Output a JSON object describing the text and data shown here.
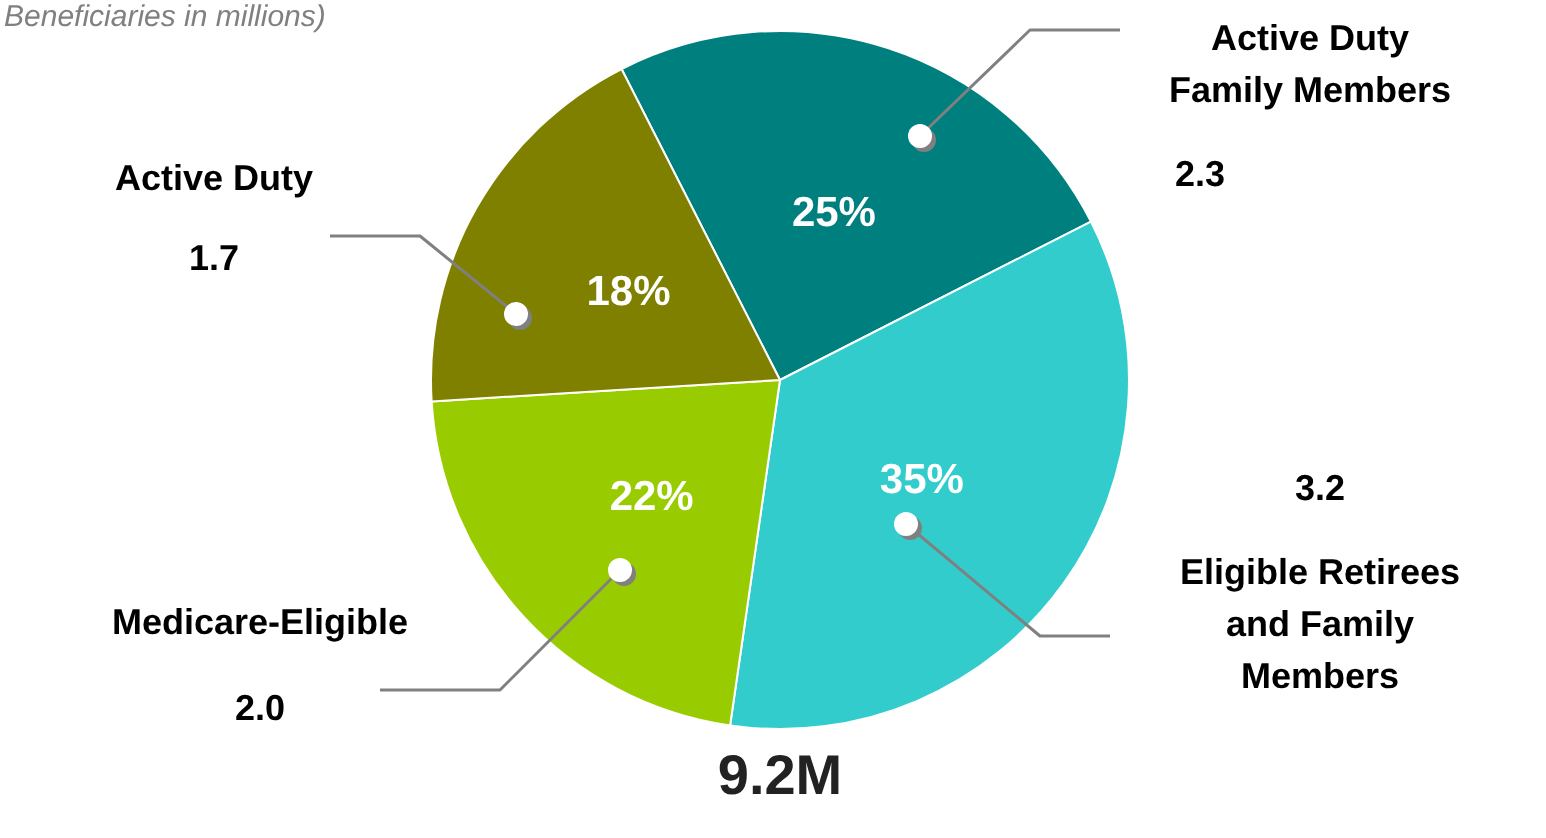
{
  "chart_data": {
    "type": "pie",
    "subtitle": "Beneficiaries in millions)",
    "categories": [
      "Active Duty Family Members",
      "Eligible Retirees and Family Members",
      "Medicare-Eligible",
      "Active Duty"
    ],
    "values": [
      2.3,
      3.2,
      2.0,
      1.7
    ],
    "colors": [
      "#007f7f",
      "#33cccc",
      "#99cc00",
      "#808000"
    ],
    "value_labels": [
      "2.3",
      "3.2",
      "2.0",
      "1.7"
    ],
    "annotations": [
      {
        "text": "25%",
        "x": "Active Duty Family Members"
      },
      {
        "text": "35%",
        "x": "Eligible Retirees and Family Members"
      },
      {
        "text": "22%",
        "x": "Medicare-Eligible"
      },
      {
        "text": "18%",
        "x": "Active Duty"
      },
      "9.2M"
    ],
    "legend": false
  }
}
